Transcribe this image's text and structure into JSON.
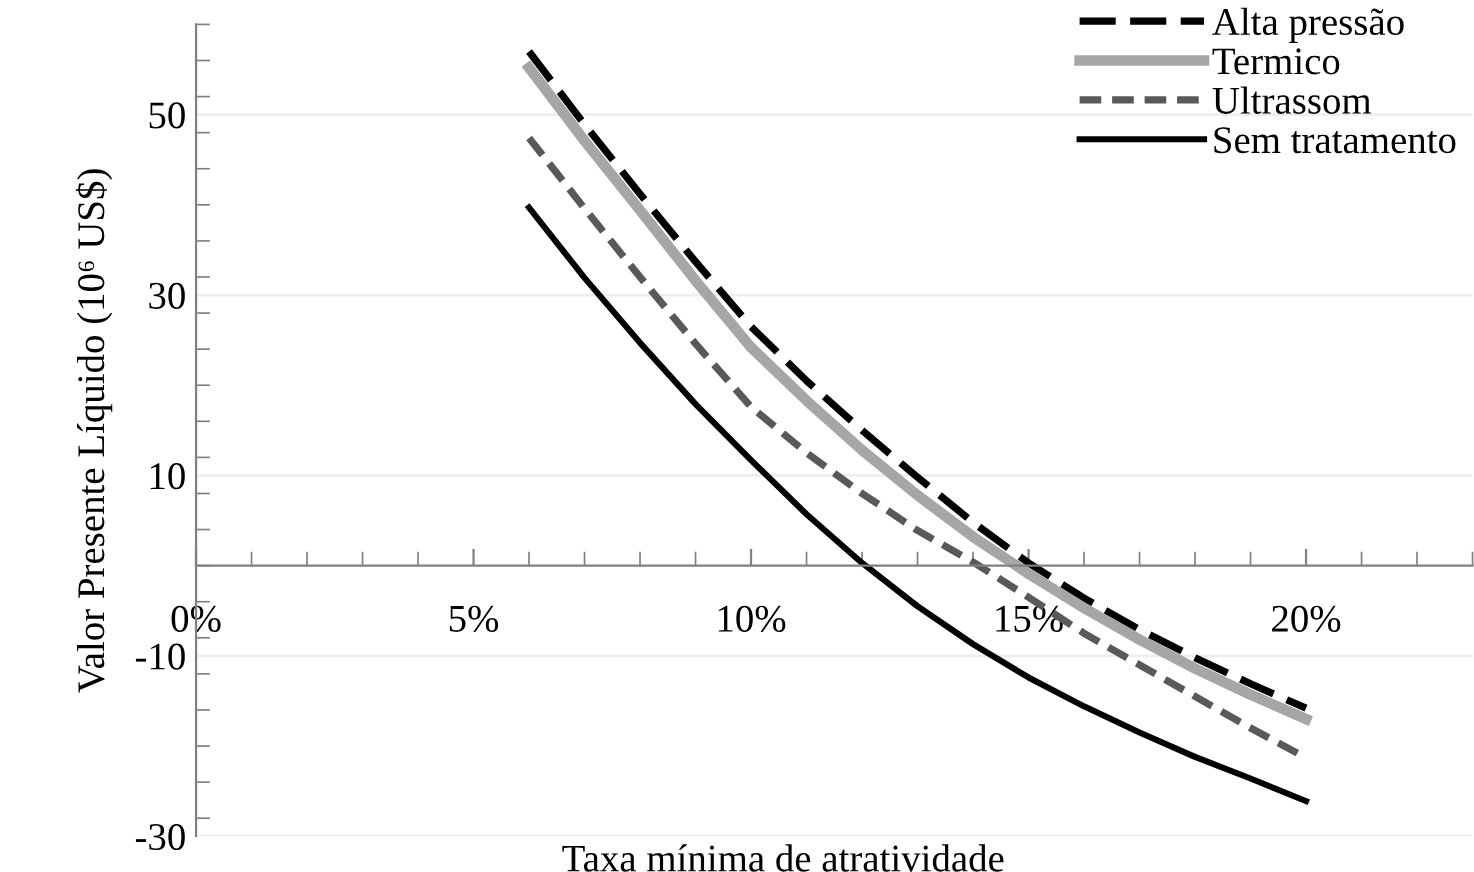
{
  "chart_data": {
    "type": "line",
    "xlabel": "Taxa mínima de atratividade",
    "ylabel": "Valor Presente Líquido (10⁶ US$)",
    "x": [
      6,
      7,
      8,
      9,
      10,
      11,
      12,
      13,
      14,
      15,
      16,
      17,
      18,
      19,
      20
    ],
    "series": [
      {
        "name": "Alta pressão",
        "color": "#000000",
        "line_style": "long dash",
        "values": [
          57,
          48.9,
          41.2,
          33.7,
          26.5,
          20.5,
          15,
          9.8,
          4.8,
          0.3,
          -3.6,
          -7.1,
          -10.2,
          -13.1,
          -15.8
        ]
      },
      {
        "name": "Termico",
        "color": "#a6a6a6",
        "line_style": "solid",
        "values": [
          55.2,
          47.1,
          39.4,
          31.6,
          24.2,
          18.3,
          12.8,
          7.8,
          3.2,
          -0.9,
          -4.7,
          -8.2,
          -11.4,
          -14.3,
          -17
        ]
      },
      {
        "name": "Ultrassom",
        "color": "#595959",
        "line_style": "dashed",
        "values": [
          47.4,
          39.6,
          32,
          24.6,
          17.6,
          12.5,
          8,
          3.9,
          0.4,
          -3.5,
          -7.5,
          -11,
          -14.5,
          -18,
          -21.3
        ]
      },
      {
        "name": "Sem tratamento",
        "color": "#000000",
        "line_style": "solid",
        "values": [
          39.7,
          31.9,
          24.7,
          17.9,
          11.7,
          5.7,
          0.3,
          -4.5,
          -8.7,
          -12.4,
          -15.6,
          -18.5,
          -21.2,
          -23.6,
          -26.1
        ]
      }
    ],
    "xlim": [
      0,
      23
    ],
    "xticks": [
      {
        "value": 0,
        "label": "0%"
      },
      {
        "value": 5,
        "label": "5%"
      },
      {
        "value": 10,
        "label": "10%"
      },
      {
        "value": 15,
        "label": "15%"
      },
      {
        "value": 20,
        "label": "20%"
      }
    ],
    "ylim": [
      -30,
      60
    ],
    "yticks": [
      {
        "value": -30,
        "label": "-30"
      },
      {
        "value": -10,
        "label": "-10"
      },
      10,
      30,
      50
    ],
    "grid": "y",
    "legend": "top right",
    "marker": "none"
  }
}
